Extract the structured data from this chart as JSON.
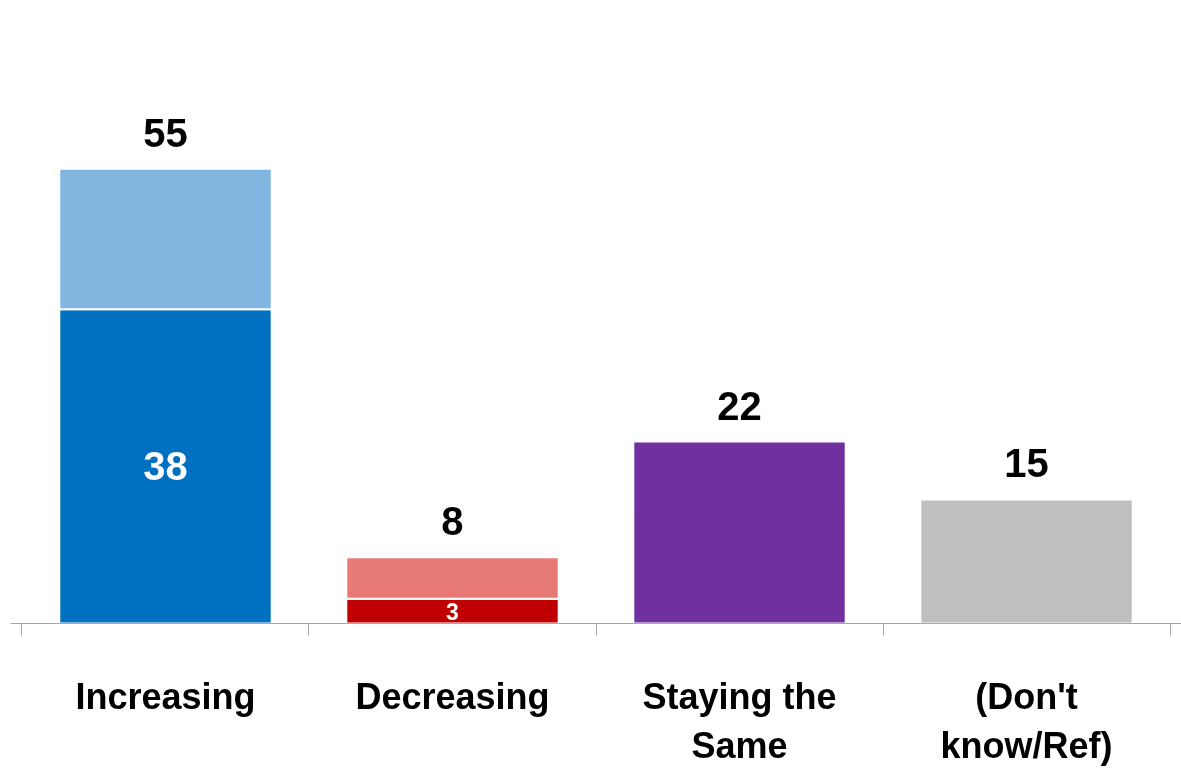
{
  "chart_data": {
    "type": "bar",
    "stacked": true,
    "tick_labels": "x",
    "categories": [
      "Increasing",
      "Decreasing",
      "Staying the Same",
      "(Don't know/Ref)"
    ],
    "series": [
      {
        "values": [
          38,
          3,
          22,
          15
        ],
        "colors": [
          "#0070c0",
          "#c00000",
          "#7030a0",
          "#bfbfbf"
        ],
        "value_labels": [
          "38",
          "3",
          null,
          null
        ]
      },
      {
        "values": [
          17,
          5,
          null,
          null
        ],
        "colors": [
          "#7fb5df",
          "#e77a77",
          "#7030a0",
          "#bfbfbf"
        ]
      }
    ],
    "totals": [
      "55",
      "8",
      "22",
      "15"
    ]
  }
}
